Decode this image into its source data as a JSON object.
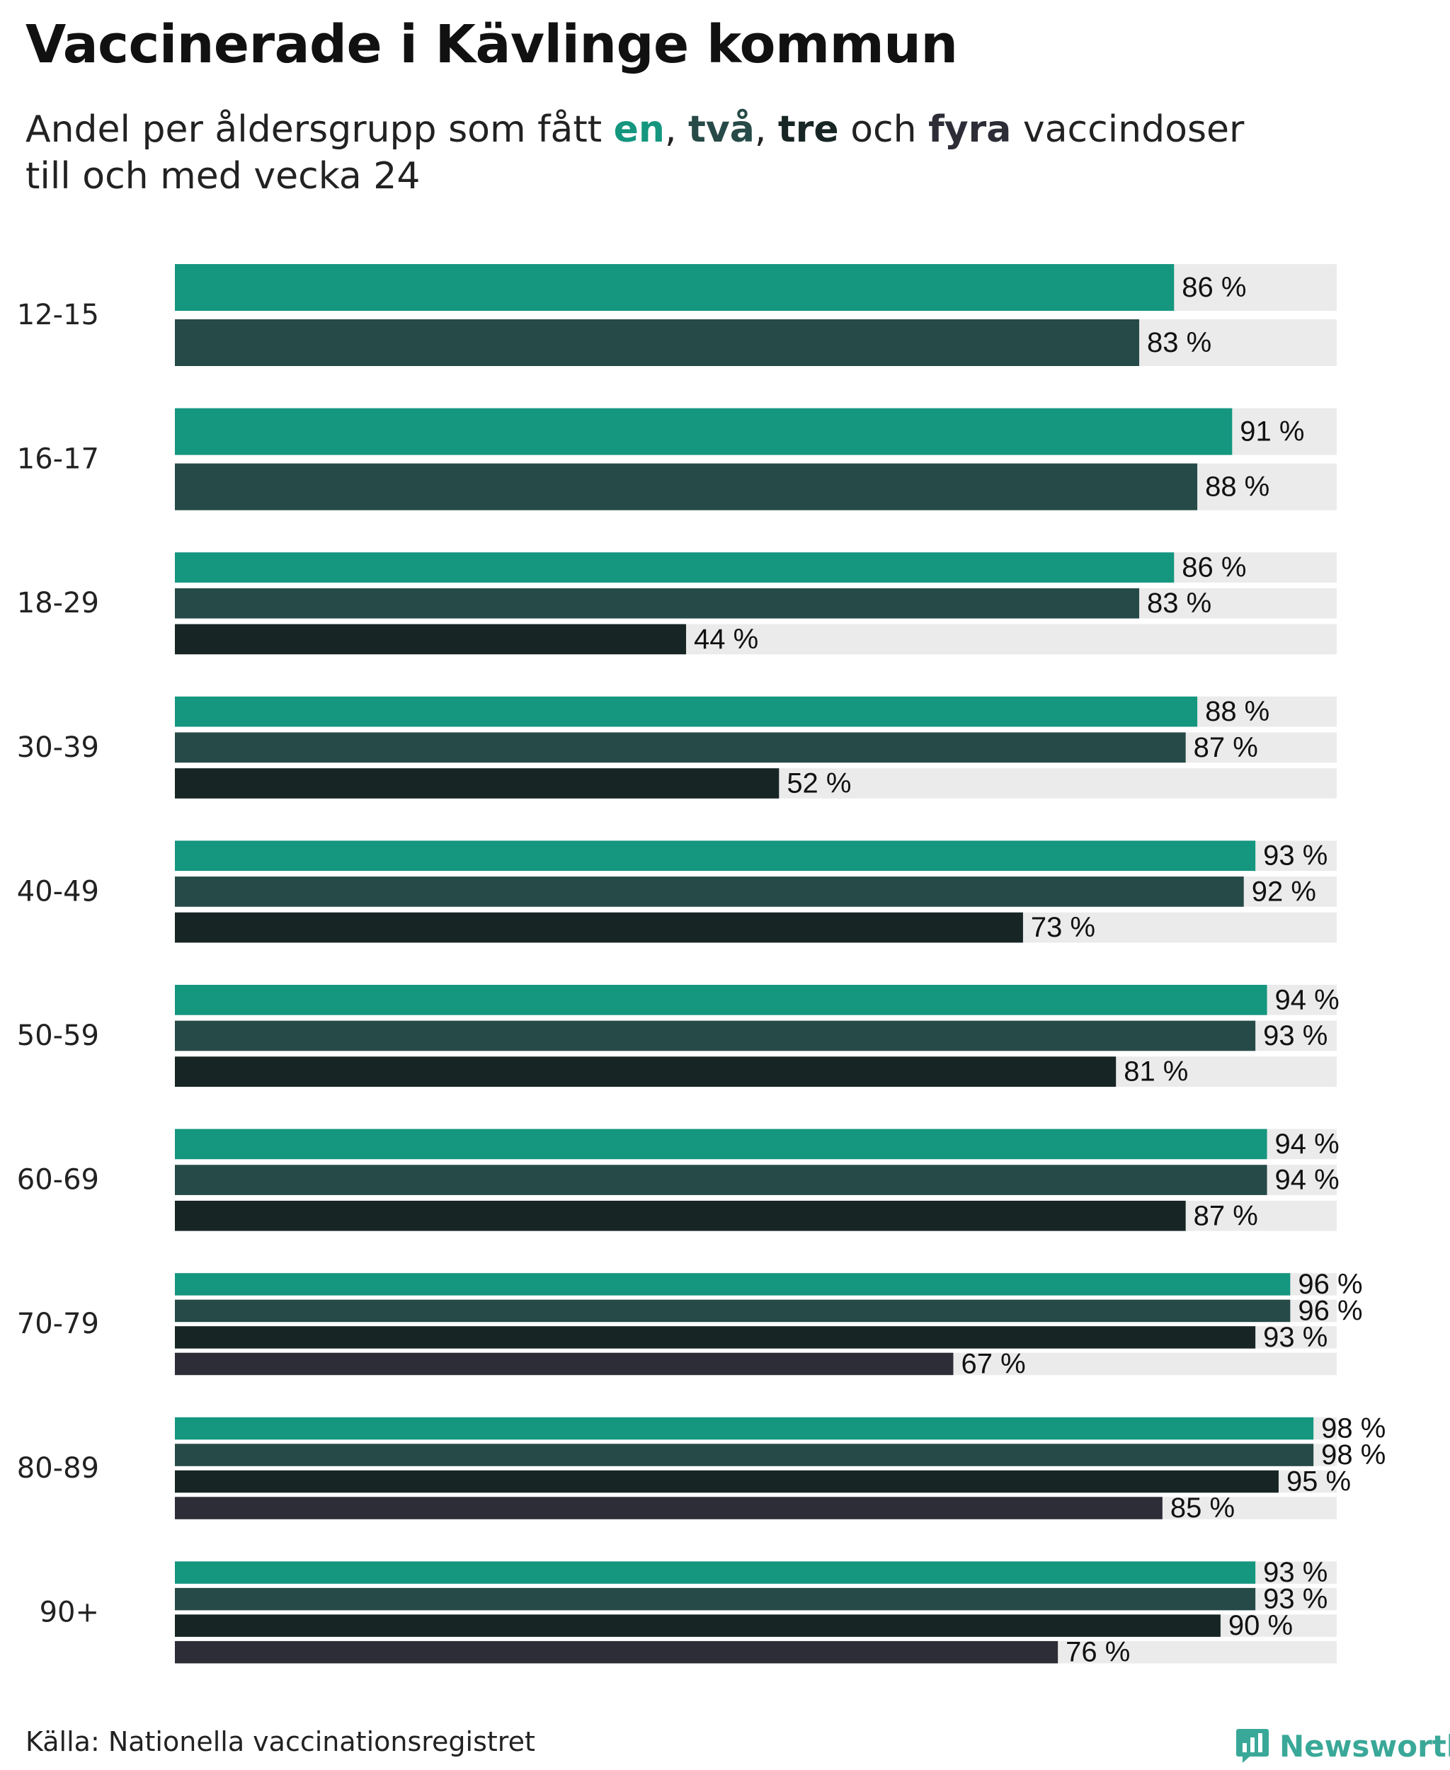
{
  "title": "Vaccinerade i Kävlinge kommun",
  "subtitle": {
    "prefix": "Andel per åldersgrupp som fått ",
    "dose1": "en",
    "sep1": ", ",
    "dose2": "två",
    "sep2": ", ",
    "dose3": "tre",
    "sep3": " och ",
    "dose4": "fyra",
    "suffix": " vaccindoser",
    "line2": "till och med vecka 24"
  },
  "colors": {
    "dose1": "#14967f",
    "dose2": "#264a47",
    "dose3": "#172624",
    "dose4": "#2d2d38",
    "track": "#ebebeb",
    "logo": "#3aa898"
  },
  "source": "Källa: Nationella vaccinationsregistret",
  "logo": {
    "text": "Newsworthy",
    "icon": "bar-chart-icon"
  },
  "chart_data": {
    "type": "bar",
    "orientation": "horizontal",
    "title": "Vaccinerade i Kävlinge kommun",
    "xlim": [
      0,
      100
    ],
    "unit": "%",
    "series_names": [
      "en dos",
      "två doser",
      "tre doser",
      "fyra doser"
    ],
    "groups": [
      {
        "label": "12-15",
        "values": [
          86,
          83
        ]
      },
      {
        "label": "16-17",
        "values": [
          91,
          88
        ]
      },
      {
        "label": "18-29",
        "values": [
          86,
          83,
          44
        ]
      },
      {
        "label": "30-39",
        "values": [
          88,
          87,
          52
        ]
      },
      {
        "label": "40-49",
        "values": [
          93,
          92,
          73
        ]
      },
      {
        "label": "50-59",
        "values": [
          94,
          93,
          81
        ]
      },
      {
        "label": "60-69",
        "values": [
          94,
          94,
          87
        ]
      },
      {
        "label": "70-79",
        "values": [
          96,
          96,
          93,
          67
        ]
      },
      {
        "label": "80-89",
        "values": [
          98,
          98,
          95,
          85
        ]
      },
      {
        "label": "90+",
        "values": [
          93,
          93,
          90,
          76
        ]
      }
    ]
  }
}
